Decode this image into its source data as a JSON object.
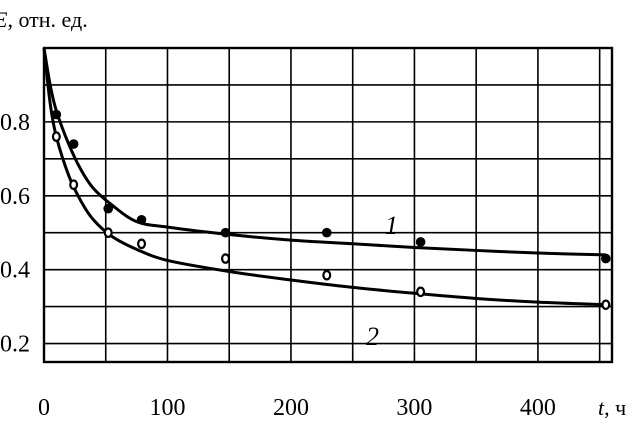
{
  "chart_data": {
    "type": "scatter",
    "ylabel_var": "E",
    "ylabel_unit": ", отн. ед.",
    "xlabel_var": "t",
    "xlabel_unit": ", ч",
    "xlim": [
      0,
      460
    ],
    "ylim": [
      0.15,
      1.0
    ],
    "x_ticks": [
      0,
      100,
      200,
      300,
      400
    ],
    "y_ticks": [
      0.2,
      0.4,
      0.6,
      0.8
    ],
    "y_tick_labels": [
      "0.2",
      "0.4",
      "0.6",
      "0.8"
    ],
    "x_tick_labels": [
      "0",
      "100",
      "200",
      "300",
      "400"
    ],
    "grid": true,
    "series": [
      {
        "name": "1",
        "marker": "filled-circle",
        "points": [
          [
            10,
            0.82
          ],
          [
            24,
            0.74
          ],
          [
            52,
            0.565
          ],
          [
            79,
            0.535
          ],
          [
            147,
            0.5
          ],
          [
            229,
            0.5
          ],
          [
            305,
            0.475
          ],
          [
            455,
            0.43
          ]
        ],
        "curve": [
          [
            0,
            1.0
          ],
          [
            5,
            0.9
          ],
          [
            10,
            0.83
          ],
          [
            20,
            0.74
          ],
          [
            30,
            0.67
          ],
          [
            40,
            0.62
          ],
          [
            55,
            0.575
          ],
          [
            75,
            0.53
          ],
          [
            100,
            0.515
          ],
          [
            150,
            0.495
          ],
          [
            200,
            0.48
          ],
          [
            250,
            0.47
          ],
          [
            300,
            0.46
          ],
          [
            350,
            0.452
          ],
          [
            400,
            0.445
          ],
          [
            455,
            0.44
          ]
        ]
      },
      {
        "name": "2",
        "marker": "open-circle",
        "points": [
          [
            10,
            0.76
          ],
          [
            24,
            0.63
          ],
          [
            52,
            0.5
          ],
          [
            79,
            0.47
          ],
          [
            147,
            0.43
          ],
          [
            229,
            0.385
          ],
          [
            305,
            0.34
          ],
          [
            455,
            0.305
          ]
        ],
        "curve": [
          [
            0,
            1.0
          ],
          [
            5,
            0.85
          ],
          [
            10,
            0.76
          ],
          [
            20,
            0.655
          ],
          [
            30,
            0.585
          ],
          [
            40,
            0.535
          ],
          [
            55,
            0.49
          ],
          [
            75,
            0.455
          ],
          [
            100,
            0.425
          ],
          [
            150,
            0.395
          ],
          [
            200,
            0.372
          ],
          [
            250,
            0.352
          ],
          [
            300,
            0.336
          ],
          [
            350,
            0.322
          ],
          [
            400,
            0.312
          ],
          [
            455,
            0.305
          ]
        ]
      }
    ]
  }
}
